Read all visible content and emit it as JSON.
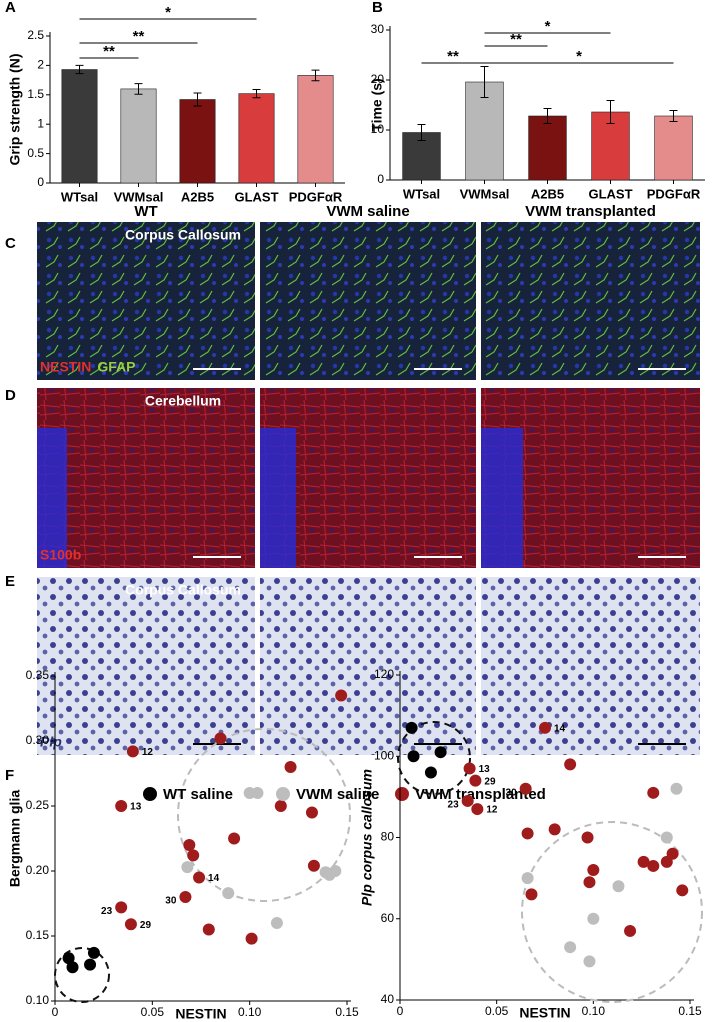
{
  "panels": [
    "A",
    "B",
    "C",
    "D",
    "E",
    "F"
  ],
  "image_grid": {
    "columns": [
      "WT",
      "VWM saline",
      "VWM transplanted"
    ],
    "rows": [
      {
        "region": "Corpus Callosum",
        "stains": [
          {
            "text": "NESTIN",
            "color": "#e03030"
          },
          {
            "text": "GFAP",
            "color": "#9ad040"
          }
        ]
      },
      {
        "region": "Cerebellum",
        "stains": [
          {
            "text": "S100b",
            "color": "#e03030"
          }
        ]
      },
      {
        "region": "Corpus Callosum",
        "stains": [
          {
            "text": "Plp",
            "color": "#2a3370"
          }
        ]
      }
    ]
  },
  "chart_data": [
    {
      "type": "bar",
      "y_label": "Grip strength (N)",
      "categories": [
        "WTsal",
        "VWMsal",
        "A2B5",
        "GLAST",
        "PDGFαR"
      ],
      "values": [
        1.93,
        1.6,
        1.42,
        1.52,
        1.83
      ],
      "errors": [
        0.07,
        0.09,
        0.11,
        0.07,
        0.09
      ],
      "colors": [
        "#3a3a3a",
        "#b8b8b8",
        "#7a1212",
        "#d83c3c",
        "#e48c8c"
      ],
      "ylim": [
        0,
        2.5
      ],
      "yticks": [
        0,
        0.5,
        1,
        1.5,
        2,
        2.5
      ],
      "annotations": [
        {
          "text": "**",
          "from": "WTsal",
          "to": "VWMsal"
        },
        {
          "text": "**",
          "from": "WTsal",
          "to": "A2B5"
        },
        {
          "text": "*",
          "from": "WTsal",
          "to": "GLAST"
        }
      ]
    },
    {
      "type": "bar",
      "y_label": "Time (s)",
      "categories": [
        "WTsal",
        "VWMsal",
        "A2B5",
        "GLAST",
        "PDGFαR"
      ],
      "values": [
        9.5,
        19.6,
        12.8,
        13.6,
        12.8
      ],
      "errors": [
        1.6,
        3.1,
        1.5,
        2.3,
        1.1
      ],
      "colors": [
        "#3a3a3a",
        "#b8b8b8",
        "#7a1212",
        "#d83c3c",
        "#e48c8c"
      ],
      "ylim": [
        0,
        30
      ],
      "yticks": [
        0,
        10,
        20,
        30
      ],
      "annotations": [
        {
          "text": "**",
          "from": "WTsal",
          "to": "VWMsal"
        },
        {
          "text": "**",
          "from": "VWMsal",
          "to": "A2B5"
        },
        {
          "text": "*",
          "from": "VWMsal",
          "to": "GLAST"
        },
        {
          "text": "*",
          "from": "VWMsal",
          "to": "PDGFαR"
        }
      ]
    },
    {
      "type": "scatter",
      "y_label": "Bergmann glia",
      "x_label": "NESTIN",
      "xlim": [
        0,
        0.15
      ],
      "xticks": [
        0,
        0.05,
        {
          "value": 0.1,
          "label": "0.10"
        },
        0.15
      ],
      "ylim": [
        0.1,
        0.35
      ],
      "yticks": [
        {
          "value": 0.1,
          "label": "0.10"
        },
        0.15,
        {
          "value": 0.2,
          "label": "0.20"
        },
        0.25,
        {
          "value": 0.3,
          "label": "0.30"
        },
        0.35
      ],
      "series": [
        {
          "name": "WT saline",
          "color": "#000000",
          "x": [
            0.007,
            0.009,
            0.018,
            0.02
          ],
          "values": [
            0.133,
            0.126,
            0.128,
            0.137
          ]
        },
        {
          "name": "VWM saline",
          "color": "#bdbdbd",
          "x": [
            0.068,
            0.089,
            0.1,
            0.104,
            0.114,
            0.139,
            0.141,
            0.144
          ],
          "values": [
            0.203,
            0.183,
            0.26,
            0.26,
            0.16,
            0.199,
            0.197,
            0.2
          ]
        },
        {
          "name": "VWM transplanted",
          "color": "#a01c1c",
          "x": [
            0.04,
            0.034,
            0.034,
            0.039,
            0.069,
            0.071,
            0.067,
            0.074,
            0.079,
            0.085,
            0.092,
            0.101,
            0.116,
            0.121,
            0.132,
            0.133,
            0.147
          ],
          "values": [
            0.292,
            0.25,
            0.172,
            0.159,
            0.22,
            0.212,
            0.18,
            0.195,
            0.155,
            0.302,
            0.225,
            0.148,
            0.25,
            0.28,
            0.245,
            0.204,
            0.335
          ],
          "labels": [
            "12",
            "13",
            "23",
            "29",
            null,
            null,
            "30",
            "14",
            null,
            null,
            null,
            null,
            null,
            null,
            null,
            null,
            null
          ]
        }
      ]
    },
    {
      "type": "scatter",
      "y_label": "Plp corpus callosum",
      "x_label": "NESTIN",
      "xlim": [
        0,
        0.15
      ],
      "xticks": [
        0,
        0.05,
        {
          "value": 0.1,
          "label": "0.10"
        },
        0.15
      ],
      "ylim": [
        40,
        120
      ],
      "yticks": [
        40,
        60,
        80,
        100,
        120
      ],
      "series": [
        {
          "color": "#000000",
          "x": [
            0.006,
            0.007,
            0.016,
            0.021
          ],
          "values": [
            107,
            100,
            96,
            101
          ]
        },
        {
          "color": "#bdbdbd",
          "x": [
            0.066,
            0.088,
            0.098,
            0.1,
            0.113,
            0.138,
            0.143
          ],
          "values": [
            70,
            53,
            49.5,
            60,
            68,
            80,
            92
          ]
        },
        {
          "color": "#a01c1c",
          "x": [
            0.036,
            0.035,
            0.039,
            0.04,
            0.075,
            0.065,
            0.066,
            0.068,
            0.088,
            0.08,
            0.097,
            0.098,
            0.1,
            0.119,
            0.126,
            0.131,
            0.131,
            0.138,
            0.141,
            0.146
          ],
          "values": [
            97,
            89,
            94,
            87,
            107,
            92,
            81,
            66,
            98,
            82,
            80,
            69,
            72,
            57,
            74,
            91,
            73,
            74,
            76,
            67
          ],
          "labels": [
            "13",
            "23",
            "29",
            "12",
            "14",
            "30",
            null,
            null,
            null,
            null,
            null,
            null,
            null,
            null,
            null,
            null,
            null,
            null,
            null,
            null
          ]
        }
      ]
    }
  ]
}
